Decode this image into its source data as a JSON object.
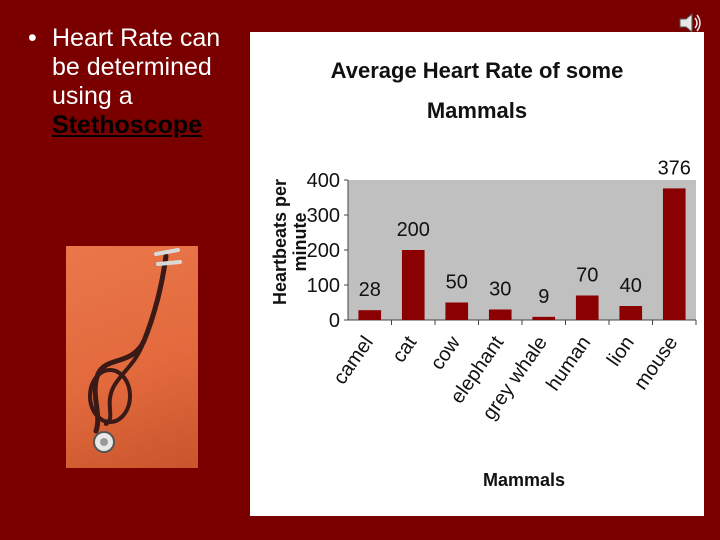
{
  "slide": {
    "bullet_symbol": "•",
    "bullet_text": "Heart Rate can be determined using a",
    "link_text": "Stethoscope",
    "background_color": "#7a0000"
  },
  "icons": {
    "speaker": "speaker-icon"
  },
  "chart_data": {
    "type": "bar",
    "title_lines": [
      "Average Heart Rate of some",
      "Mammals"
    ],
    "xlabel": "Mammals",
    "ylabel_lines": [
      "Heartbeats per",
      "minute"
    ],
    "categories": [
      "camel",
      "cat",
      "cow",
      "elephant",
      "grey whale",
      "human",
      "lion",
      "mouse"
    ],
    "values": [
      28,
      200,
      50,
      30,
      9,
      70,
      40,
      376
    ],
    "ylim": [
      0,
      400
    ],
    "yticks": [
      "0",
      "100",
      "200",
      "300",
      "400"
    ],
    "grid": false,
    "legend": "none",
    "bar_color": "#8b0000",
    "plot_background": "#c0c0c0"
  }
}
